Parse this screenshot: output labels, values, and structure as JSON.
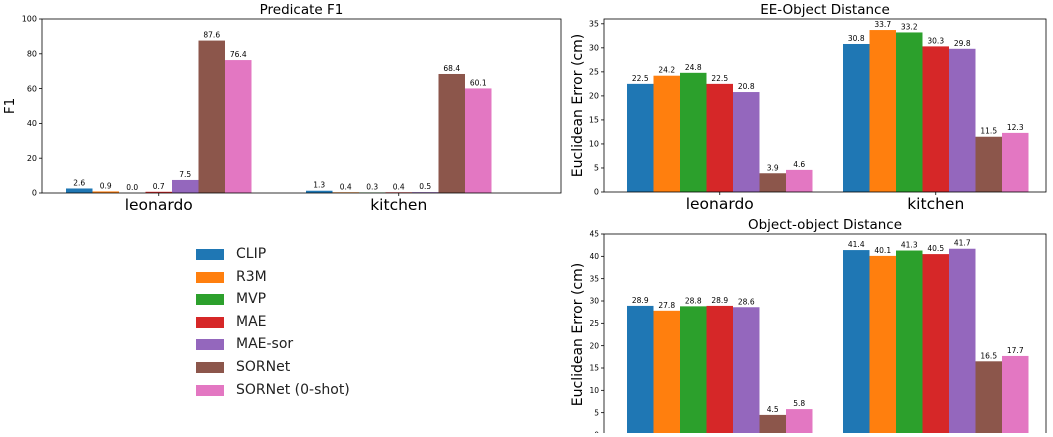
{
  "colors": [
    "#1f77b4",
    "#ff7f0e",
    "#2ca02c",
    "#d62728",
    "#9467bd",
    "#8c564b",
    "#e377c2"
  ],
  "legend": {
    "items": [
      "CLIP",
      "R3M",
      "MVP",
      "MAE",
      "MAE-sor",
      "SORNet",
      "SORNet (0-shot)"
    ],
    "placement": "center-left"
  },
  "chart_data": [
    {
      "type": "bar",
      "title": "Predicate F1",
      "xlabel": "",
      "ylabel": "F1",
      "categories": [
        "leonardo",
        "kitchen"
      ],
      "ylim": [
        0,
        100
      ],
      "yticks": [
        "0",
        "20",
        "40",
        "60",
        "80",
        "100"
      ],
      "grid": false,
      "series": [
        {
          "name": "CLIP",
          "values": [
            2.6,
            1.3
          ],
          "labels": [
            "2.6",
            "1.3"
          ]
        },
        {
          "name": "R3M",
          "values": [
            0.9,
            0.4
          ],
          "labels": [
            "0.9",
            "0.4"
          ]
        },
        {
          "name": "MVP",
          "values": [
            0.0,
            0.3
          ],
          "labels": [
            "0.0",
            "0.3"
          ]
        },
        {
          "name": "MAE",
          "values": [
            0.7,
            0.4
          ],
          "labels": [
            "0.7",
            "0.4"
          ]
        },
        {
          "name": "MAE-sor",
          "values": [
            7.5,
            0.5
          ],
          "labels": [
            "7.5",
            "0.5"
          ]
        },
        {
          "name": "SORNet",
          "values": [
            87.6,
            68.4
          ],
          "labels": [
            "87.6",
            "68.4"
          ]
        },
        {
          "name": "SORNet (0-shot)",
          "values": [
            76.4,
            60.1
          ],
          "labels": [
            "76.4",
            "60.1"
          ]
        }
      ]
    },
    {
      "type": "bar",
      "title": "EE-Object Distance",
      "xlabel": "",
      "ylabel": "Euclidean Error (cm)",
      "categories": [
        "leonardo",
        "kitchen"
      ],
      "ylim": [
        0,
        36
      ],
      "yticks": [
        "0",
        "5",
        "10",
        "15",
        "20",
        "25",
        "30",
        "35"
      ],
      "grid": false,
      "series": [
        {
          "name": "CLIP",
          "values": [
            22.5,
            30.8
          ],
          "labels": [
            "22.5",
            "30.8"
          ]
        },
        {
          "name": "R3M",
          "values": [
            24.2,
            33.7
          ],
          "labels": [
            "24.2",
            "33.7"
          ]
        },
        {
          "name": "MVP",
          "values": [
            24.8,
            33.2
          ],
          "labels": [
            "24.8",
            "33.2"
          ]
        },
        {
          "name": "MAE",
          "values": [
            22.5,
            30.3
          ],
          "labels": [
            "22.5",
            "30.3"
          ]
        },
        {
          "name": "MAE-sor",
          "values": [
            20.8,
            29.8
          ],
          "labels": [
            "20.8",
            "29.8"
          ]
        },
        {
          "name": "SORNet",
          "values": [
            3.9,
            11.5
          ],
          "labels": [
            "3.9",
            "11.5"
          ]
        },
        {
          "name": "SORNet (0-shot)",
          "values": [
            4.6,
            12.3
          ],
          "labels": [
            "4.6",
            "12.3"
          ]
        }
      ]
    },
    {
      "type": "bar",
      "title": "Object-object Distance",
      "xlabel": "",
      "ylabel": "Euclidean Error (cm)",
      "categories": [
        "leonardo",
        "kitchen"
      ],
      "ylim": [
        0,
        45
      ],
      "yticks": [
        "0",
        "5",
        "10",
        "15",
        "20",
        "25",
        "30",
        "35",
        "40",
        "45"
      ],
      "grid": false,
      "series": [
        {
          "name": "CLIP",
          "values": [
            28.9,
            41.4
          ],
          "labels": [
            "28.9",
            "41.4"
          ]
        },
        {
          "name": "R3M",
          "values": [
            27.8,
            40.1
          ],
          "labels": [
            "27.8",
            "40.1"
          ]
        },
        {
          "name": "MVP",
          "values": [
            28.8,
            41.3
          ],
          "labels": [
            "28.8",
            "41.3"
          ]
        },
        {
          "name": "MAE",
          "values": [
            28.9,
            40.5
          ],
          "labels": [
            "28.9",
            "40.5"
          ]
        },
        {
          "name": "MAE-sor",
          "values": [
            28.6,
            41.7
          ],
          "labels": [
            "28.6",
            "41.7"
          ]
        },
        {
          "name": "SORNet",
          "values": [
            4.5,
            16.5
          ],
          "labels": [
            "4.5",
            "16.5"
          ]
        },
        {
          "name": "SORNet (0-shot)",
          "values": [
            5.8,
            17.7
          ],
          "labels": [
            "5.8",
            "17.7"
          ]
        }
      ]
    }
  ]
}
